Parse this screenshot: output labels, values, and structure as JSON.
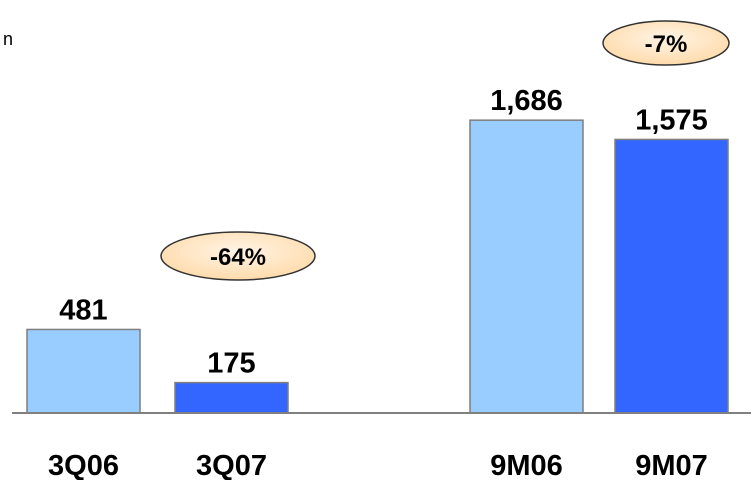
{
  "chart_data": {
    "type": "bar",
    "title": "",
    "unit_fragment": "n",
    "categories": [
      "3Q06",
      "3Q07",
      "9M06",
      "9M07"
    ],
    "values": [
      481,
      175,
      1686,
      1575
    ],
    "value_labels": [
      "481",
      "175",
      "1,686",
      "1,575"
    ],
    "ylim": [
      0,
      1900
    ],
    "grid": false,
    "colors": {
      "prior_period": "#99ccff",
      "current_period": "#3366ff",
      "bar_border": "#7f7f7f",
      "badge_fill": "#ffe6bf",
      "axis": "#808080"
    },
    "changes": [
      {
        "label": "-64%",
        "between": [
          "3Q06",
          "3Q07"
        ]
      },
      {
        "label": "-7%",
        "between": [
          "9M06",
          "9M07"
        ]
      }
    ]
  }
}
